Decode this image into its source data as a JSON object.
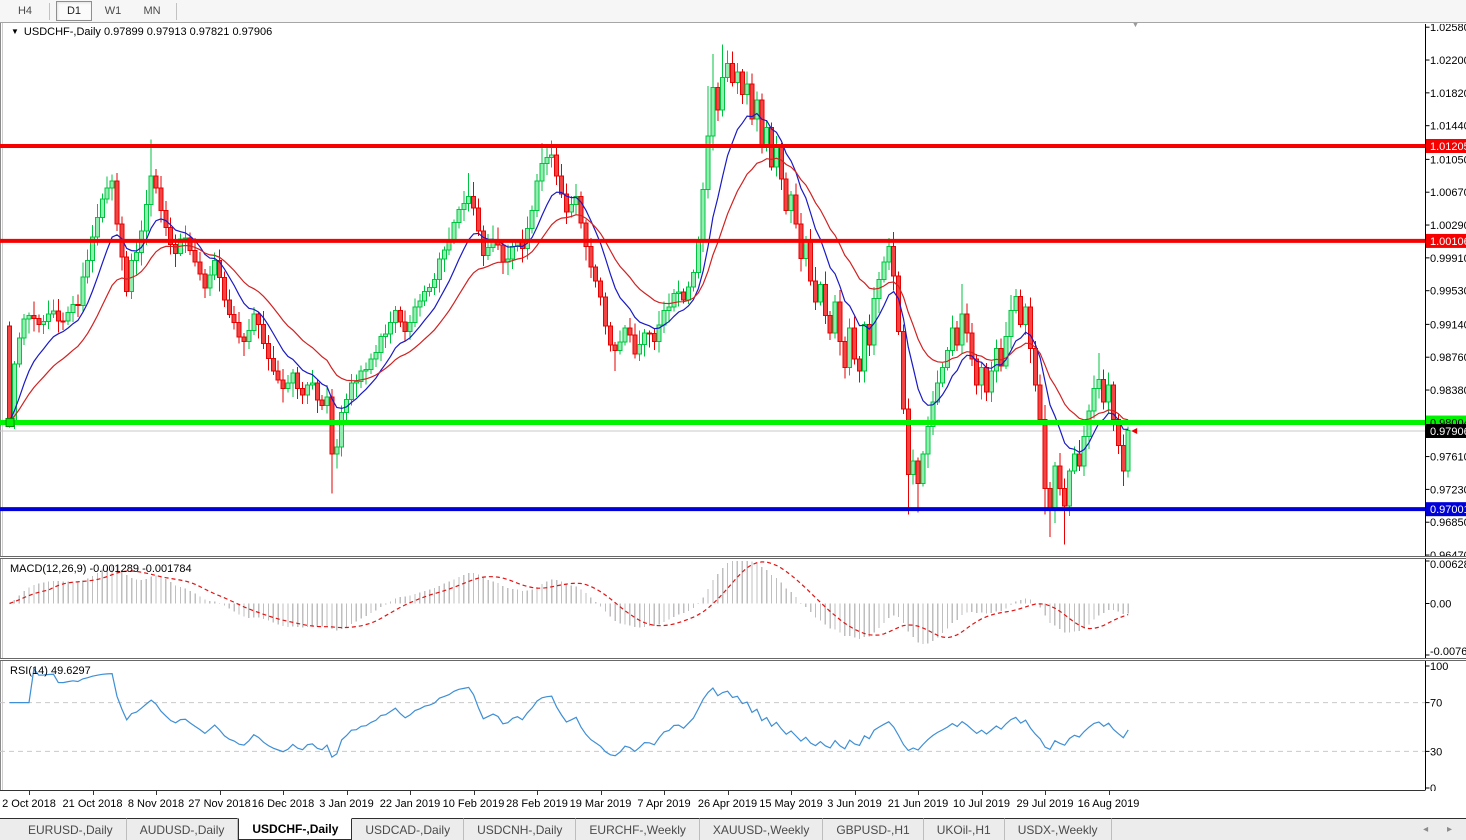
{
  "toolbar": {
    "timeframes": [
      "H4",
      "D1",
      "W1",
      "MN"
    ],
    "active_timeframe": "D1"
  },
  "chart": {
    "title": "USDCHF-,Daily",
    "quote": "0.97899 0.97913 0.97821 0.97906",
    "dropdown_icon": "▼",
    "scroll_end_icon": "▼"
  },
  "indicators": {
    "macd_label": "MACD(12,26,9)",
    "macd_values": "-0.001289 -0.001784",
    "rsi_label": "RSI(14) 49.6297"
  },
  "tabs": {
    "items": [
      "EURUSD-,Daily",
      "AUDUSD-,Daily",
      "USDCHF-,Daily",
      "USDCAD-,Daily",
      "USDCNH-,Daily",
      "EURCHF-,Weekly",
      "XAUUSD-,Weekly",
      "GBPUSD-,H1",
      "UKOil-,H1",
      "USDX-,Weekly"
    ],
    "active": "USDCHF-,Daily",
    "scroll_arrows": "◂ ▸"
  },
  "chart_data": {
    "type": "candlestick",
    "symbol": "USDCHF",
    "timeframe": "Daily",
    "quote": {
      "open": 0.97899,
      "high": 0.97913,
      "low": 0.97821,
      "close": 0.97906
    },
    "y_axis_ticks": [
      "1.02580",
      "1.02200",
      "1.01820",
      "1.01440",
      "1.01050",
      "1.00670",
      "1.00290",
      "0.99910",
      "0.99530",
      "0.99140",
      "0.98760",
      "0.98380",
      "0.98000",
      "0.97610",
      "0.97230",
      "0.96850",
      "0.96470"
    ],
    "price_at_top": 1.02617,
    "price_at_bottom": 0.96459,
    "x_axis_dates": [
      "2 Oct 2018",
      "21 Oct 2018",
      "8 Nov 2018",
      "27 Nov 2018",
      "16 Dec 2018",
      "3 Jan 2019",
      "22 Jan 2019",
      "10 Feb 2019",
      "28 Feb 2019",
      "19 Mar 2019",
      "7 Apr 2019",
      "26 Apr 2019",
      "15 May 2019",
      "3 Jun 2019",
      "21 Jun 2019",
      "10 Jul 2019",
      "29 Jul 2019",
      "16 Aug 2019"
    ],
    "num_candles": 230,
    "first_open": 0.9912,
    "close_anchors": [
      [
        0,
        0.9802
      ],
      [
        1,
        0.9868
      ],
      [
        2,
        0.9898
      ],
      [
        3,
        0.992
      ],
      [
        4,
        0.9924
      ],
      [
        6,
        0.9914
      ],
      [
        8,
        0.9926
      ],
      [
        10,
        0.9918
      ],
      [
        12,
        0.9928
      ],
      [
        14,
        0.9936
      ],
      [
        16,
        0.9988
      ],
      [
        18,
        1.0038
      ],
      [
        20,
        1.0072
      ],
      [
        21,
        1.008
      ],
      [
        22,
        1.003
      ],
      [
        23,
        0.9992
      ],
      [
        24,
        0.9952
      ],
      [
        25,
        0.9988
      ],
      [
        27,
        1.0022
      ],
      [
        29,
        1.0086
      ],
      [
        30,
        1.0072
      ],
      [
        32,
        1.0026
      ],
      [
        34,
        0.9996
      ],
      [
        36,
        1.0014
      ],
      [
        38,
        0.9986
      ],
      [
        40,
        0.9956
      ],
      [
        42,
        0.9988
      ],
      [
        44,
        0.9942
      ],
      [
        46,
        0.9916
      ],
      [
        48,
        0.9894
      ],
      [
        50,
        0.9926
      ],
      [
        52,
        0.9892
      ],
      [
        54,
        0.986
      ],
      [
        56,
        0.984
      ],
      [
        58,
        0.9858
      ],
      [
        60,
        0.9832
      ],
      [
        62,
        0.9846
      ],
      [
        64,
        0.982
      ],
      [
        65,
        0.983
      ],
      [
        66,
        0.9764
      ],
      [
        67,
        0.9772
      ],
      [
        68,
        0.9812
      ],
      [
        70,
        0.9846
      ],
      [
        72,
        0.986
      ],
      [
        74,
        0.9874
      ],
      [
        76,
        0.99
      ],
      [
        78,
        0.9916
      ],
      [
        79,
        0.993
      ],
      [
        81,
        0.9906
      ],
      [
        83,
        0.9934
      ],
      [
        85,
        0.9952
      ],
      [
        87,
        0.9966
      ],
      [
        89,
        1.0
      ],
      [
        91,
        1.0032
      ],
      [
        93,
        1.0054
      ],
      [
        94,
        1.0062
      ],
      [
        96,
        1.0022
      ],
      [
        97,
        0.9994
      ],
      [
        99,
        1.0012
      ],
      [
        101,
        0.9986
      ],
      [
        103,
        1.0004
      ],
      [
        105,
        1.0002
      ],
      [
        107,
        1.0046
      ],
      [
        109,
        1.01
      ],
      [
        111,
        1.011
      ],
      [
        112,
        1.0086
      ],
      [
        114,
        1.0044
      ],
      [
        116,
        1.0062
      ],
      [
        118,
        1.0004
      ],
      [
        120,
        0.9964
      ],
      [
        122,
        0.9912
      ],
      [
        124,
        0.9884
      ],
      [
        126,
        0.991
      ],
      [
        128,
        0.988
      ],
      [
        130,
        0.9904
      ],
      [
        132,
        0.9894
      ],
      [
        134,
        0.993
      ],
      [
        136,
        0.995
      ],
      [
        138,
        0.9942
      ],
      [
        140,
        0.9974
      ],
      [
        141,
        1.0012
      ],
      [
        142,
        1.007
      ],
      [
        143,
        1.0132
      ],
      [
        144,
        1.0188
      ],
      [
        145,
        1.0162
      ],
      [
        146,
        1.02
      ],
      [
        147,
        1.0216
      ],
      [
        148,
        1.0194
      ],
      [
        149,
        1.0206
      ],
      [
        150,
        1.018
      ],
      [
        151,
        1.0192
      ],
      [
        152,
        1.0152
      ],
      [
        153,
        1.0174
      ],
      [
        154,
        1.0122
      ],
      [
        155,
        1.0142
      ],
      [
        156,
        1.0096
      ],
      [
        157,
        1.012
      ],
      [
        158,
        1.0082
      ],
      [
        159,
        1.0046
      ],
      [
        160,
        1.0064
      ],
      [
        161,
        1.003
      ],
      [
        162,
        0.999
      ],
      [
        163,
        1.001
      ],
      [
        164,
        0.9964
      ],
      [
        165,
        0.994
      ],
      [
        166,
        0.996
      ],
      [
        167,
        0.9924
      ],
      [
        168,
        0.9904
      ],
      [
        169,
        0.994
      ],
      [
        170,
        0.9894
      ],
      [
        171,
        0.9864
      ],
      [
        172,
        0.991
      ],
      [
        173,
        0.9874
      ],
      [
        174,
        0.986
      ],
      [
        175,
        0.9914
      ],
      [
        176,
        0.989
      ],
      [
        177,
        0.9944
      ],
      [
        178,
        0.9966
      ],
      [
        179,
        0.9986
      ],
      [
        180,
        1.0004
      ],
      [
        181,
        0.997
      ],
      [
        182,
        0.9906
      ],
      [
        183,
        0.9816
      ],
      [
        184,
        0.974
      ],
      [
        185,
        0.9756
      ],
      [
        186,
        0.973
      ],
      [
        187,
        0.9764
      ],
      [
        188,
        0.9796
      ],
      [
        189,
        0.9824
      ],
      [
        190,
        0.9846
      ],
      [
        191,
        0.9864
      ],
      [
        192,
        0.9884
      ],
      [
        193,
        0.991
      ],
      [
        194,
        0.989
      ],
      [
        195,
        0.9926
      ],
      [
        196,
        0.9904
      ],
      [
        197,
        0.9874
      ],
      [
        198,
        0.9844
      ],
      [
        199,
        0.9864
      ],
      [
        200,
        0.9836
      ],
      [
        201,
        0.986
      ],
      [
        202,
        0.9886
      ],
      [
        203,
        0.9866
      ],
      [
        204,
        0.99
      ],
      [
        205,
        0.993
      ],
      [
        206,
        0.9946
      ],
      [
        207,
        0.9914
      ],
      [
        208,
        0.9934
      ],
      [
        209,
        0.9886
      ],
      [
        210,
        0.9844
      ],
      [
        211,
        0.9804
      ],
      [
        212,
        0.9724
      ],
      [
        213,
        0.97
      ],
      [
        214,
        0.975
      ],
      [
        215,
        0.9724
      ],
      [
        216,
        0.9704
      ],
      [
        217,
        0.9744
      ],
      [
        218,
        0.9764
      ],
      [
        219,
        0.975
      ],
      [
        220,
        0.9784
      ],
      [
        221,
        0.9814
      ],
      [
        222,
        0.984
      ],
      [
        223,
        0.985
      ],
      [
        224,
        0.9824
      ],
      [
        225,
        0.9844
      ],
      [
        226,
        0.9804
      ],
      [
        227,
        0.9774
      ],
      [
        228,
        0.9744
      ],
      [
        229,
        0.9791
      ]
    ],
    "spike_lows": [
      [
        66,
        0.9718
      ],
      [
        124,
        0.986
      ],
      [
        184,
        0.9694
      ],
      [
        186,
        0.9696
      ],
      [
        212,
        0.9694
      ],
      [
        213,
        0.9668
      ],
      [
        216,
        0.9659
      ],
      [
        228,
        0.9727
      ]
    ],
    "spike_highs": [
      [
        29,
        1.0128
      ],
      [
        94,
        1.0089
      ],
      [
        109,
        1.0124
      ],
      [
        111,
        1.0127
      ],
      [
        143,
        1.019
      ],
      [
        144,
        1.0227
      ],
      [
        146,
        1.0238
      ],
      [
        147,
        1.0231
      ],
      [
        180,
        1.0014
      ],
      [
        195,
        0.9961
      ],
      [
        205,
        0.9948
      ],
      [
        223,
        0.9881
      ]
    ],
    "levels": [
      {
        "name": "resistance-upper",
        "value": 1.01205,
        "label": "1.01205",
        "line_color": "#f60000",
        "thickness": 4,
        "tag_bg": "#f60000",
        "tag_text": "#ffffff"
      },
      {
        "name": "resistance-lower",
        "value": 1.00106,
        "label": "1.00106",
        "line_color": "#f60000",
        "thickness": 4,
        "tag_bg": "#f60000",
        "tag_text": "#ffffff"
      },
      {
        "name": "support-green",
        "value": 0.98004,
        "label": "0.98004",
        "line_color": "#00f300",
        "thickness": 5,
        "tag_bg": "#00f300",
        "tag_text": "#000000",
        "handle": true
      },
      {
        "name": "support-blue",
        "value": 0.97001,
        "label": "0.97001",
        "line_color": "#0000d8",
        "thickness": 4,
        "tag_bg": "#0000d8",
        "tag_text": "#ffffff"
      }
    ],
    "current_price": {
      "value": 0.97906,
      "label": "0.97906",
      "line_color": "#c8c8c8",
      "tag_bg": "#000000",
      "tag_text": "#ffffff"
    },
    "candle_colors": {
      "bull_border": "#00c342",
      "bull_fill": "#90efae",
      "bear_border": "#e60202",
      "bear_fill": "#f34343"
    },
    "moving_averages": [
      {
        "name": "ma-fast",
        "period": 10,
        "color": "#1a1ac4"
      },
      {
        "name": "ma-slow",
        "period": 22,
        "color": "#d02222"
      }
    ],
    "macd": {
      "fast": 12,
      "slow": 26,
      "signal_period": 9,
      "axis_labels": [
        "0.006286",
        "0.00",
        "-0.00762"
      ],
      "axis_max": 0.006286,
      "axis_min": -0.00762,
      "bar_color": "#bfbfbf",
      "signal_color": "#e01414"
    },
    "rsi": {
      "period": 14,
      "current": 49.6297,
      "axis_labels": [
        "100",
        "70",
        "30",
        "0"
      ],
      "level_lines": [
        70,
        30
      ],
      "line_color": "#3e8fd6",
      "level_color": "#c9c9c9"
    }
  }
}
